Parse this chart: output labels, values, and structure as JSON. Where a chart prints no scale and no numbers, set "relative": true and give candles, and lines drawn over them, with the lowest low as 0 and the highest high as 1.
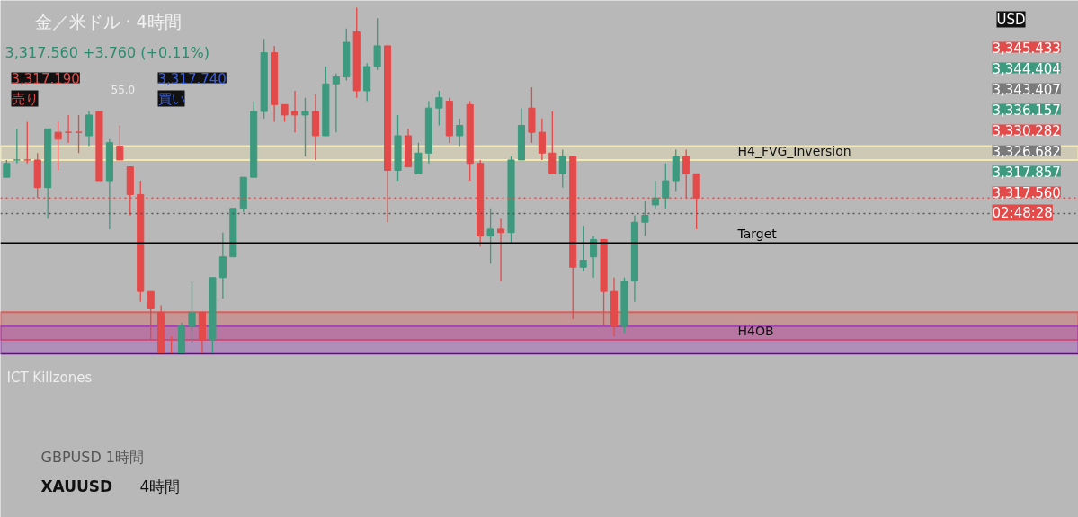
{
  "chart_data": {
    "type": "candlestick",
    "title": "金／米ドル · 4時間",
    "subtitle": "3,317.560  +3.760 (+0.11%)",
    "relative": true,
    "tick_labels": false,
    "categories": [
      null,
      null,
      null,
      null,
      null,
      null,
      null,
      null,
      null,
      null,
      null,
      null,
      null,
      null,
      null,
      null,
      null,
      null,
      null,
      null,
      null,
      null,
      null,
      null,
      null,
      null,
      null,
      null,
      null,
      null,
      null,
      null,
      null,
      null,
      null,
      null,
      null,
      null,
      null,
      null,
      null,
      null,
      null,
      null,
      null,
      null,
      null,
      null,
      null,
      null,
      null,
      null,
      null,
      null,
      null,
      null,
      null,
      null,
      null,
      null,
      null,
      null,
      null,
      null,
      null,
      null,
      null,
      null
    ],
    "ohlc": [
      [
        0.51,
        0.56,
        0.51,
        0.55
      ],
      [
        0.56,
        0.65,
        0.55,
        0.56
      ],
      [
        0.56,
        0.67,
        0.55,
        0.56
      ],
      [
        0.56,
        0.58,
        0.45,
        0.48
      ],
      [
        0.48,
        0.65,
        0.39,
        0.65
      ],
      [
        0.64,
        0.67,
        0.53,
        0.62
      ],
      [
        0.64,
        0.69,
        0.61,
        0.64
      ],
      [
        0.64,
        0.69,
        0.58,
        0.64
      ],
      [
        0.63,
        0.7,
        0.6,
        0.69
      ],
      [
        0.7,
        0.7,
        0.5,
        0.5
      ],
      [
        0.5,
        0.62,
        0.36,
        0.61
      ],
      [
        0.6,
        0.66,
        0.56,
        0.56
      ],
      [
        0.54,
        0.54,
        0.4,
        0.46
      ],
      [
        0.46,
        0.5,
        0.15,
        0.18
      ],
      [
        0.18,
        0.18,
        0.04,
        0.13
      ],
      [
        0.12,
        0.14,
        0,
        0
      ],
      [
        0,
        0.05,
        0,
        0
      ],
      [
        0,
        0.09,
        0,
        0.08
      ],
      [
        0.08,
        0.21,
        0.03,
        0.12
      ],
      [
        0.12,
        0.12,
        0,
        0.04
      ],
      [
        0.04,
        0.22,
        0,
        0.22
      ],
      [
        0.22,
        0.35,
        0.16,
        0.28
      ],
      [
        0.28,
        0.42,
        0.28,
        0.42
      ],
      [
        0.42,
        0.51,
        0.41,
        0.51
      ],
      [
        0.51,
        0.73,
        0.51,
        0.7
      ],
      [
        0.7,
        0.91,
        0.68,
        0.87
      ],
      [
        0.87,
        0.89,
        0.67,
        0.72
      ],
      [
        0.72,
        0.72,
        0.67,
        0.69
      ],
      [
        0.7,
        0.76,
        0.64,
        0.69
      ],
      [
        0.69,
        0.74,
        0.57,
        0.7
      ],
      [
        0.7,
        0.75,
        0.56,
        0.63
      ],
      [
        0.63,
        0.83,
        0.63,
        0.78
      ],
      [
        0.78,
        0.81,
        0.64,
        0.8
      ],
      [
        0.8,
        0.94,
        0.79,
        0.9
      ],
      [
        0.93,
        1,
        0.74,
        0.76
      ],
      [
        0.76,
        0.84,
        0.73,
        0.83
      ],
      [
        0.83,
        0.97,
        0.82,
        0.89
      ],
      [
        0.89,
        0.89,
        0.38,
        0.53
      ],
      [
        0.53,
        0.69,
        0.5,
        0.63
      ],
      [
        0.63,
        0.65,
        0.54,
        0.54
      ],
      [
        0.52,
        0.61,
        0.52,
        0.58
      ],
      [
        0.58,
        0.73,
        0.55,
        0.71
      ],
      [
        0.71,
        0.76,
        0.66,
        0.74
      ],
      [
        0.73,
        0.74,
        0.61,
        0.63
      ],
      [
        0.63,
        0.68,
        0.6,
        0.66
      ],
      [
        0.72,
        0.73,
        0.5,
        0.55
      ],
      [
        0.55,
        0.56,
        0.31,
        0.34
      ],
      [
        0.34,
        0.42,
        0.26,
        0.36
      ],
      [
        0.36,
        0.39,
        0.21,
        0.35
      ],
      [
        0.35,
        0.57,
        0.32,
        0.56
      ],
      [
        0.56,
        0.71,
        0.56,
        0.66
      ],
      [
        0.71,
        0.77,
        0.61,
        0.64
      ],
      [
        0.64,
        0.68,
        0.56,
        0.58
      ],
      [
        0.58,
        0.7,
        0.52,
        0.52
      ],
      [
        0.52,
        0.59,
        0.48,
        0.57
      ],
      [
        0.57,
        0.57,
        0.1,
        0.25
      ],
      [
        0.25,
        0.37,
        0.24,
        0.27
      ],
      [
        0.28,
        0.34,
        0.22,
        0.33
      ],
      [
        0.33,
        0.33,
        0.08,
        0.18
      ],
      [
        0.18,
        0.22,
        0.05,
        0.08
      ],
      [
        0.08,
        0.22,
        0.06,
        0.21
      ],
      [
        0.21,
        0.4,
        0.15,
        0.38
      ],
      [
        0.38,
        0.44,
        0.34,
        0.4
      ],
      [
        0.43,
        0.5,
        0.42,
        0.45
      ],
      [
        0.45,
        0.55,
        0.42,
        0.5
      ],
      [
        0.5,
        0.59,
        0.47,
        0.57
      ],
      [
        0.57,
        0.59,
        0.45,
        0.52
      ],
      [
        0.52,
        0.52,
        0.36,
        0.45
      ]
    ],
    "colors": [
      "#3d9a7e",
      "#3d9a7e",
      "#e34a4a",
      "#e34a4a",
      "#3d9a7e",
      "#e34a4a",
      "#e34a4a",
      "#e34a4a",
      "#3d9a7e",
      "#e34a4a",
      "#3d9a7e",
      "#e34a4a",
      "#e34a4a",
      "#e34a4a",
      "#e34a4a",
      "#e34a4a",
      "#e34a4a",
      "#3d9a7e",
      "#3d9a7e",
      "#e34a4a",
      "#3d9a7e",
      "#3d9a7e",
      "#3d9a7e",
      "#3d9a7e",
      "#3d9a7e",
      "#3d9a7e",
      "#e34a4a",
      "#e34a4a",
      "#e34a4a",
      "#3d9a7e",
      "#e34a4a",
      "#3d9a7e",
      "#3d9a7e",
      "#3d9a7e",
      "#e34a4a",
      "#3d9a7e",
      "#3d9a7e",
      "#e34a4a",
      "#3d9a7e",
      "#e34a4a",
      "#3d9a7e",
      "#3d9a7e",
      "#3d9a7e",
      "#e34a4a",
      "#3d9a7e",
      "#e34a4a",
      "#e34a4a",
      "#3d9a7e",
      "#e34a4a",
      "#3d9a7e",
      "#3d9a7e",
      "#e34a4a",
      "#e34a4a",
      "#e34a4a",
      "#3d9a7e",
      "#e34a4a",
      "#3d9a7e",
      "#3d9a7e",
      "#e34a4a",
      "#e34a4a",
      "#3d9a7e",
      "#3d9a7e",
      "#3d9a7e",
      "#3d9a7e",
      "#3d9a7e",
      "#3d9a7e",
      "#e34a4a",
      "#e34a4a"
    ],
    "ref_lines": [
      {
        "axis": "y",
        "value": 0.45,
        "color": "#e34a4a",
        "line_style": "dotted"
      },
      {
        "axis": "y",
        "value": 0.405,
        "color": "#555555",
        "line_style": "dotted"
      },
      {
        "axis": "y",
        "value": 0.32,
        "label": "Target",
        "color": "#000000",
        "line_style": "solid"
      }
    ],
    "bands": [
      {
        "axis": "y",
        "from": 0.56,
        "to": 0.6,
        "label": "H4_FVG_Inversion",
        "color": "#fff3b0"
      },
      {
        "axis": "y",
        "from": 0.04,
        "to": 0.12,
        "label": "H4OB",
        "color": "#e34a4a"
      },
      {
        "axis": "y",
        "from": 0,
        "to": 0.08,
        "color": "#9b30c0"
      }
    ],
    "annotations": [
      "3,317.190\n売り",
      "55.0",
      "3,317.740\n買い",
      "USD",
      "3,345.433",
      "3,344.404",
      "3,343.407",
      "3,336.157",
      "3,330.282",
      "3,326.682",
      "3,317.857",
      "3,317.560\n02:48:28",
      "ICT Killzones",
      "GBPUSD  1時間",
      "XAUUSD",
      "4時間"
    ]
  }
}
